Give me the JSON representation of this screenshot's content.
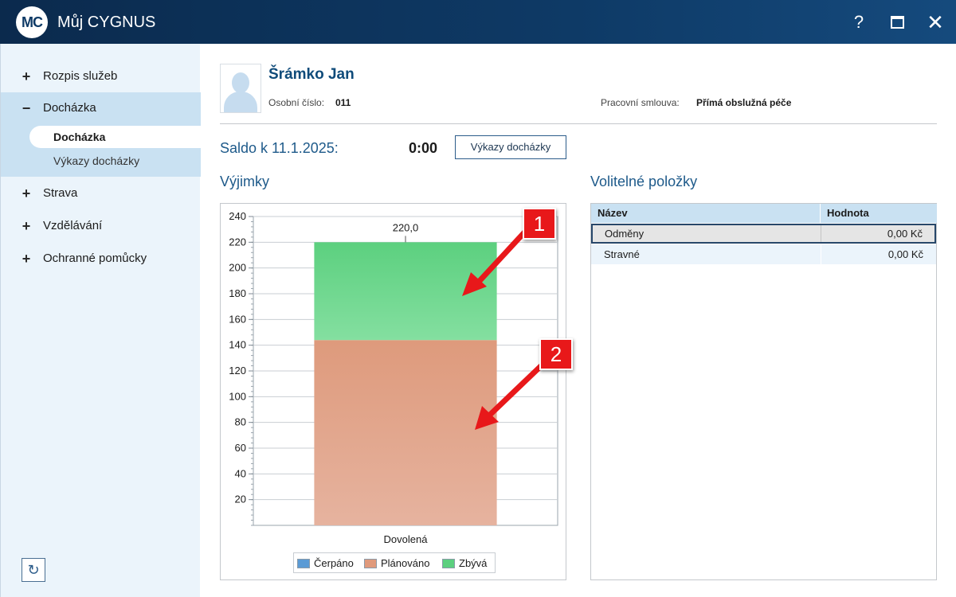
{
  "window": {
    "logo": "MC",
    "title": "Můj CYGNUS",
    "help_label": "?",
    "close_label": "✕"
  },
  "sidebar": {
    "items": [
      {
        "label": "Rozpis služeb",
        "sign": "+"
      },
      {
        "label": "Docházka",
        "sign": "−"
      },
      {
        "label": "Strava",
        "sign": "+"
      },
      {
        "label": "Vzdělávání",
        "sign": "+"
      },
      {
        "label": "Ochranné pomůcky",
        "sign": "+"
      }
    ],
    "sub_items": [
      {
        "label": "Docházka"
      },
      {
        "label": "Výkazy docházky"
      }
    ],
    "refresh_label": "↻"
  },
  "employee": {
    "name": "Šrámko Jan",
    "id_label": "Osobní číslo:",
    "id_value": "011",
    "contract_label": "Pracovní smlouva:",
    "contract_value": "Přímá obslužná péče"
  },
  "saldo": {
    "label": "Saldo k 11.1.2025:",
    "value": "0:00",
    "button_label": "Výkazy docházky"
  },
  "sections": {
    "exceptions_title": "Výjimky",
    "optional_title": "Volitelné položky"
  },
  "chart_data": {
    "type": "bar",
    "stacked": true,
    "categories": [
      "Dovolená"
    ],
    "series": [
      {
        "name": "Čerpáno",
        "values": [
          0
        ],
        "color": "#5b9bd5"
      },
      {
        "name": "Plánováno",
        "values": [
          144
        ],
        "color": "#e09a7c"
      },
      {
        "name": "Zbývá",
        "values": [
          76
        ],
        "color": "#5cd07f"
      }
    ],
    "total_labels": [
      "220,0"
    ],
    "ylim": [
      0,
      240
    ],
    "yticks": [
      "20",
      "40",
      "60",
      "80",
      "100",
      "120",
      "140",
      "160",
      "180",
      "200",
      "220",
      "240"
    ],
    "legend_position": "bottom",
    "grid": true
  },
  "table": {
    "headers": [
      "Název",
      "Hodnota"
    ],
    "rows": [
      {
        "name": "Odměny",
        "value": "0,00 Kč",
        "selected": true
      },
      {
        "name": "Stravné",
        "value": "0,00 Kč",
        "selected": false
      }
    ]
  },
  "annotations": [
    {
      "label": "1"
    },
    {
      "label": "2"
    }
  ]
}
